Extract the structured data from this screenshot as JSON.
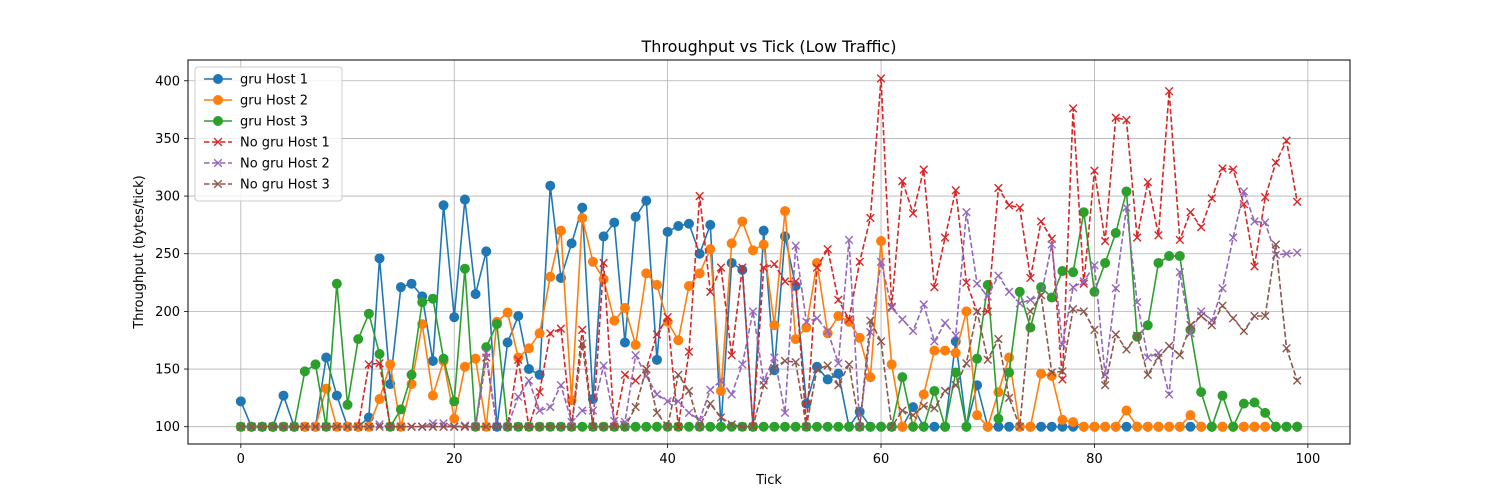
{
  "chart_data": {
    "type": "line",
    "title": "Throughput vs Tick (Low Traffic)",
    "xlabel": "Tick",
    "ylabel": "Throughput (bytes/tick)",
    "xlim": [
      -4.95,
      103.95
    ],
    "ylim": [
      85,
      418
    ],
    "xticks": [
      0,
      20,
      40,
      60,
      80,
      100
    ],
    "yticks": [
      100,
      150,
      200,
      250,
      300,
      350,
      400
    ],
    "grid": true,
    "legend_position": "top-left",
    "x": [
      0,
      1,
      2,
      3,
      4,
      5,
      6,
      7,
      8,
      9,
      10,
      11,
      12,
      13,
      14,
      15,
      16,
      17,
      18,
      19,
      20,
      21,
      22,
      23,
      24,
      25,
      26,
      27,
      28,
      29,
      30,
      31,
      32,
      33,
      34,
      35,
      36,
      37,
      38,
      39,
      40,
      41,
      42,
      43,
      44,
      45,
      46,
      47,
      48,
      49,
      50,
      51,
      52,
      53,
      54,
      55,
      56,
      57,
      58,
      59,
      60,
      61,
      62,
      63,
      64,
      65,
      66,
      67,
      68,
      69,
      70,
      71,
      72,
      73,
      74,
      75,
      76,
      77,
      78,
      79,
      80,
      81,
      82,
      83,
      84,
      85,
      86,
      87,
      88,
      89,
      90,
      91,
      92,
      93,
      94,
      95,
      96,
      97,
      98,
      99
    ],
    "series": [
      {
        "name": "gru Host 1",
        "color": "#1f77b4",
        "linestyle": "solid",
        "marker": "circle",
        "values": [
          122,
          100,
          100,
          100,
          127,
          100,
          100,
          100,
          160,
          127,
          100,
          100,
          108,
          246,
          137,
          221,
          224,
          213,
          157,
          292,
          195,
          297,
          215,
          252,
          100,
          173,
          196,
          150,
          145,
          309,
          229,
          259,
          290,
          124,
          265,
          277,
          173,
          282,
          296,
          158,
          269,
          274,
          276,
          250,
          275,
          100,
          242,
          236,
          100,
          270,
          149,
          265,
          222,
          120,
          152,
          141,
          146,
          100,
          113,
          100,
          100,
          100,
          100,
          117,
          100,
          100,
          100,
          174,
          100,
          136,
          100,
          100,
          100,
          100,
          100,
          100,
          100,
          100,
          100,
          100,
          100,
          100,
          100,
          100,
          100,
          100,
          100,
          100,
          100,
          100,
          100,
          100,
          100,
          100,
          100,
          100,
          100,
          100,
          100,
          100
        ]
      },
      {
        "name": "gru Host 2",
        "color": "#ff7f0e",
        "linestyle": "solid",
        "marker": "circle",
        "values": [
          100,
          100,
          100,
          100,
          100,
          100,
          100,
          100,
          133,
          100,
          100,
          100,
          100,
          124,
          154,
          100,
          137,
          189,
          127,
          157,
          107,
          152,
          159,
          100,
          191,
          199,
          160,
          168,
          181,
          230,
          270,
          123,
          281,
          243,
          228,
          192,
          203,
          171,
          233,
          223,
          191,
          175,
          222,
          233,
          254,
          131,
          259,
          278,
          253,
          258,
          188,
          287,
          176,
          186,
          242,
          181,
          196,
          191,
          177,
          143,
          261,
          154,
          100,
          100,
          128,
          166,
          166,
          164,
          200,
          110,
          100,
          130,
          160,
          100,
          100,
          146,
          144,
          106,
          104,
          100,
          100,
          100,
          100,
          114,
          100,
          100,
          100,
          100,
          100,
          110,
          100,
          100,
          100,
          100,
          100,
          100,
          100,
          100,
          100,
          100
        ]
      },
      {
        "name": "gru Host 3",
        "color": "#2ca02c",
        "linestyle": "solid",
        "marker": "circle",
        "values": [
          100,
          100,
          100,
          100,
          100,
          100,
          148,
          154,
          100,
          224,
          119,
          176,
          198,
          163,
          100,
          115,
          145,
          208,
          211,
          159,
          122,
          237,
          100,
          169,
          189,
          100,
          100,
          100,
          100,
          100,
          100,
          100,
          100,
          100,
          100,
          100,
          100,
          100,
          100,
          100,
          100,
          100,
          100,
          100,
          100,
          100,
          100,
          100,
          100,
          100,
          100,
          100,
          100,
          100,
          100,
          100,
          100,
          100,
          100,
          100,
          100,
          100,
          143,
          100,
          100,
          131,
          100,
          147,
          100,
          159,
          223,
          107,
          147,
          217,
          186,
          221,
          212,
          235,
          234,
          286,
          217,
          242,
          268,
          304,
          178,
          188,
          242,
          248,
          248,
          184,
          130,
          100,
          127,
          100,
          120,
          121,
          112,
          100,
          100,
          100
        ]
      },
      {
        "name": "No gru Host 1",
        "color": "#d62728",
        "linestyle": "dashed",
        "marker": "x",
        "values": [
          100,
          100,
          100,
          100,
          100,
          100,
          100,
          100,
          100,
          100,
          100,
          100,
          154,
          155,
          100,
          100,
          100,
          100,
          100,
          100,
          100,
          100,
          100,
          160,
          100,
          100,
          158,
          100,
          130,
          181,
          185,
          100,
          184,
          100,
          242,
          100,
          145,
          140,
          150,
          180,
          195,
          100,
          165,
          300,
          217,
          238,
          162,
          238,
          100,
          238,
          241,
          226,
          226,
          100,
          238,
          254,
          210,
          193,
          243,
          281,
          402,
          204,
          313,
          285,
          323,
          221,
          264,
          305,
          225,
          200,
          200,
          307,
          292,
          290,
          229,
          278,
          263,
          141,
          376,
          224,
          322,
          261,
          368,
          366,
          264,
          312,
          266,
          391,
          262,
          286,
          273,
          298,
          324,
          323,
          293,
          239,
          299,
          329,
          348,
          295
        ]
      },
      {
        "name": "No gru Host 2",
        "color": "#9467bd",
        "linestyle": "dashed",
        "marker": "x",
        "values": [
          100,
          100,
          100,
          100,
          100,
          100,
          100,
          100,
          100,
          100,
          100,
          100,
          100,
          102,
          100,
          100,
          100,
          100,
          103,
          103,
          100,
          101,
          100,
          164,
          100,
          100,
          126,
          140,
          114,
          117,
          136,
          104,
          114,
          114,
          153,
          105,
          104,
          162,
          144,
          128,
          122,
          122,
          112,
          106,
          132,
          140,
          128,
          154,
          200,
          140,
          160,
          112,
          257,
          191,
          194,
          183,
          155,
          262,
          100,
          182,
          243,
          203,
          193,
          183,
          206,
          174,
          190,
          179,
          286,
          224,
          213,
          231,
          217,
          207,
          210,
          214,
          258,
          171,
          221,
          226,
          240,
          145,
          220,
          290,
          208,
          160,
          164,
          128,
          234,
          181,
          200,
          192,
          220,
          264,
          304,
          278,
          277,
          249,
          250,
          251
        ]
      },
      {
        "name": "No gru Host 3",
        "color": "#8c564b",
        "linestyle": "dashed",
        "marker": "x",
        "values": [
          100,
          100,
          100,
          100,
          100,
          100,
          100,
          100,
          100,
          100,
          100,
          100,
          100,
          100,
          100,
          100,
          100,
          100,
          100,
          100,
          100,
          100,
          100,
          100,
          100,
          100,
          100,
          100,
          100,
          100,
          100,
          100,
          172,
          100,
          100,
          100,
          100,
          117,
          150,
          112,
          100,
          145,
          131,
          100,
          120,
          108,
          102,
          100,
          100,
          136,
          151,
          157,
          156,
          100,
          150,
          153,
          136,
          154,
          100,
          192,
          174,
          100,
          114,
          110,
          118,
          116,
          131,
          136,
          155,
          200,
          158,
          176,
          125,
          100,
          200,
          214,
          147,
          148,
          202,
          200,
          184,
          136,
          180,
          167,
          179,
          145,
          160,
          170,
          162,
          188,
          196,
          188,
          205,
          194,
          183,
          196,
          196,
          258,
          168,
          140
        ]
      }
    ]
  }
}
